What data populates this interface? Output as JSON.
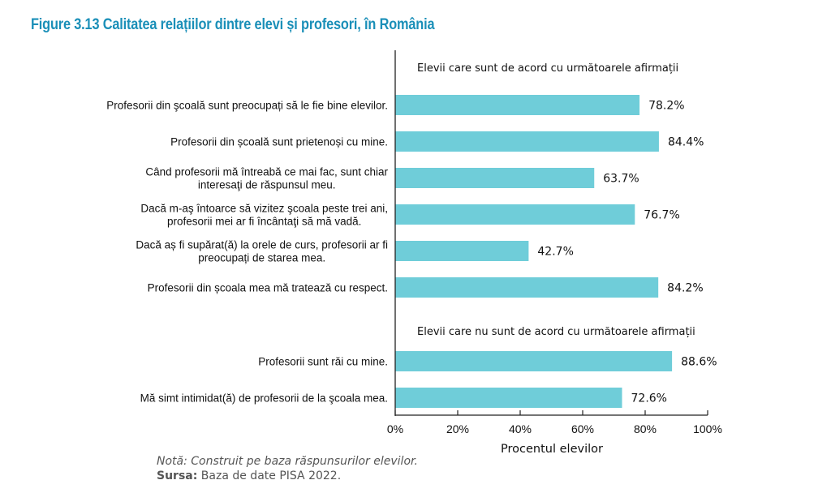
{
  "title": "Figure 3.13 Calitatea relațiilor dintre elevi și profesori, în România",
  "colors": {
    "title": "#1a8fb8",
    "bar": "#6fcdd9",
    "axis": "#222222"
  },
  "chart_data": {
    "type": "bar",
    "orientation": "horizontal",
    "title": "Figure 3.13 Calitatea relațiilor dintre elevi și profesori, în România",
    "xlabel": "Procentul elevilor",
    "ylabel": "",
    "xlim": [
      0,
      100
    ],
    "xticks": [
      "0%",
      "20%",
      "40%",
      "60%",
      "80%",
      "100%"
    ],
    "grid": false,
    "groups": [
      {
        "label": "Elevii care sunt de acord cu următoarele afirmații",
        "items": [
          {
            "category": [
              "Profesorii din şcoală sunt preocupați să le fie bine elevilor."
            ],
            "value": 78.2,
            "label": "78.2%"
          },
          {
            "category": [
              "Profesorii din școală sunt prietenoși cu mine."
            ],
            "value": 84.4,
            "label": "84.4%"
          },
          {
            "category": [
              "Când profesorii mă întreabă ce mai fac, sunt chiar",
              "interesaţi de răspunsul meu."
            ],
            "value": 63.7,
            "label": "63.7%"
          },
          {
            "category": [
              "Dacă m-aş întoarce să vizitez şcoala peste trei ani,",
              "profesorii mei ar fi încântaţi să mă vadă."
            ],
            "value": 76.7,
            "label": "76.7%"
          },
          {
            "category": [
              "Dacă aș fi supărat(ă) la orele de curs, profesorii ar fi",
              "preocupați de starea mea."
            ],
            "value": 42.7,
            "label": "42.7%"
          },
          {
            "category": [
              "Profesorii din școala mea mă tratează cu respect."
            ],
            "value": 84.2,
            "label": "84.2%"
          }
        ]
      },
      {
        "label": "Elevii care nu sunt de acord cu următoarele afirmații",
        "items": [
          {
            "category": [
              "Profesorii sunt răi cu mine."
            ],
            "value": 88.6,
            "label": "88.6%"
          },
          {
            "category": [
              "Mă simt intimidat(ă) de profesorii de la şcoala mea."
            ],
            "value": 72.6,
            "label": "72.6%"
          }
        ]
      }
    ]
  },
  "note": {
    "nota": "Notă: Construit pe baza răspunsurilor elevilor.",
    "sursa_label": "Sursa:",
    "sursa_text": " Baza de date PISA 2022."
  }
}
